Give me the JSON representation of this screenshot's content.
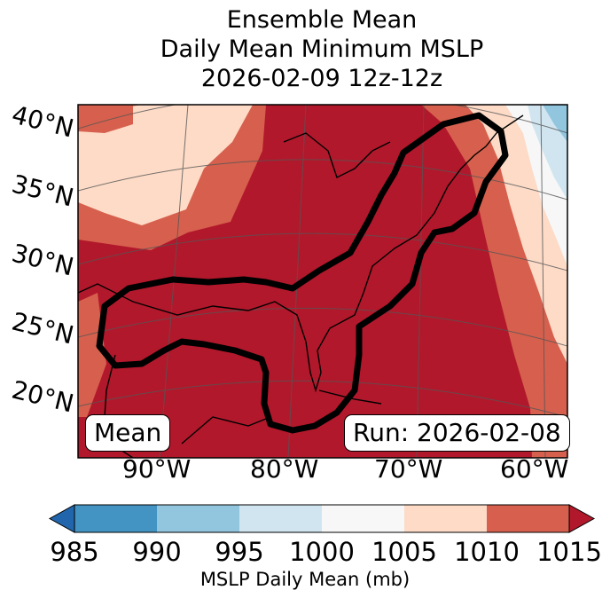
{
  "title": {
    "line1": "Ensemble Mean",
    "line2": "Daily Mean Minimum MSLP",
    "line3": "2026-02-09 12z-12z"
  },
  "map": {
    "lat_labels": [
      "40°N",
      "35°N",
      "30°N",
      "25°N",
      "20°N"
    ],
    "lon_labels": [
      "90°W",
      "80°W",
      "70°W",
      "60°W"
    ],
    "mean_box_label": "Mean",
    "run_box_label": "Run: 2026-02-08",
    "contour_color": "#000000",
    "field_description_colors": {
      "1010_1015": "#b2182b",
      "1005_1010": "#d6604d",
      "1000_1005": "#fddbc7"
    }
  },
  "colorbar": {
    "ticks": [
      "985",
      "990",
      "995",
      "1000",
      "1005",
      "1010",
      "1015"
    ],
    "colors": [
      "#2166ac",
      "#4393c3",
      "#92c5de",
      "#d1e5f0",
      "#f7f7f7",
      "#fddbc7",
      "#d6604d",
      "#b2182b"
    ],
    "label": "MSLP Daily Mean (mb)"
  }
}
